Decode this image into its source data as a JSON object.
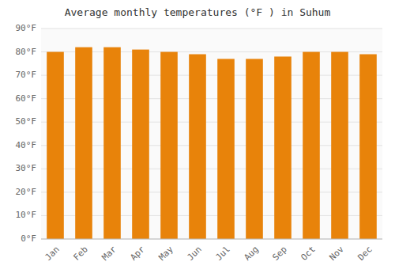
{
  "chart_data": {
    "type": "bar",
    "title": "Average monthly temperatures (°F ) in Suhum",
    "categories": [
      "Jan",
      "Feb",
      "Mar",
      "Apr",
      "May",
      "Jun",
      "Jul",
      "Aug",
      "Sep",
      "Oct",
      "Nov",
      "Dec"
    ],
    "values": [
      80,
      82,
      82,
      81,
      80,
      79,
      77,
      77,
      78,
      80,
      80,
      79
    ],
    "color": "#E8830A",
    "ylim": [
      0,
      90
    ],
    "yticks": [
      {
        "value": 0,
        "label": "0°F"
      },
      {
        "value": 10,
        "label": "10°F"
      },
      {
        "value": 20,
        "label": "20°F"
      },
      {
        "value": 30,
        "label": "30°F"
      },
      {
        "value": 40,
        "label": "40°F"
      },
      {
        "value": 50,
        "label": "50°F"
      },
      {
        "value": 60,
        "label": "60°F"
      },
      {
        "value": 70,
        "label": "70°F"
      },
      {
        "value": 80,
        "label": "80°F"
      },
      {
        "value": 90,
        "label": "90°F"
      }
    ],
    "grid": true
  }
}
